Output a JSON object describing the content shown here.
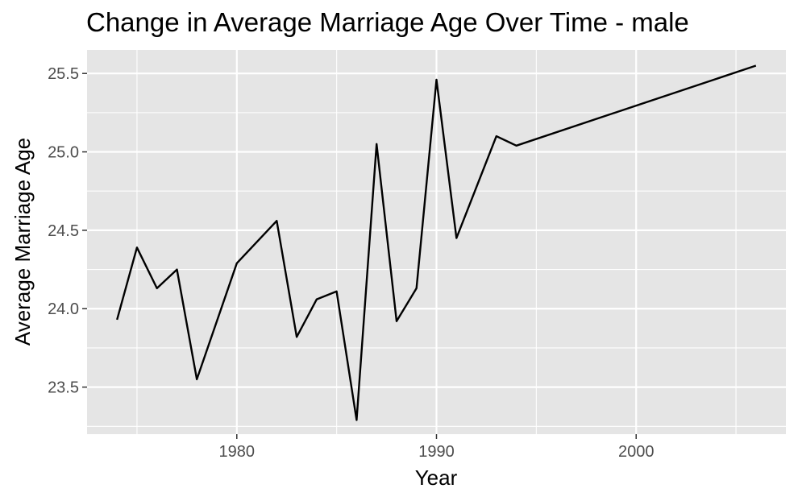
{
  "chart_data": {
    "type": "line",
    "title": "Change in Average Marriage Age Over Time - male",
    "xlabel": "Year",
    "ylabel": "Average Marriage Age",
    "xlim": [
      1972.5,
      2007.5
    ],
    "ylim": [
      23.2,
      25.65
    ],
    "x_ticks": [
      1980,
      1990,
      2000
    ],
    "x_tick_labels": [
      "1980",
      "1990",
      "2000"
    ],
    "y_ticks": [
      23.5,
      24.0,
      24.5,
      25.0,
      25.5
    ],
    "y_tick_labels": [
      "23.5",
      "24.0",
      "24.5",
      "25.0",
      "25.5"
    ],
    "grid": true,
    "legend": "none",
    "colors": {
      "panel_background": "#e5e5e5",
      "grid": "#ffffff",
      "line": "#000000",
      "tick_text": "#4d4d4d",
      "tick_mark": "#333333"
    },
    "series": [
      {
        "x": [
          1974,
          1975,
          1976,
          1977,
          1978,
          1980,
          1982,
          1983,
          1984,
          1985,
          1986,
          1987,
          1988,
          1989,
          1990,
          1991,
          1993,
          1994,
          2006
        ],
        "values": [
          23.93,
          24.39,
          24.13,
          24.25,
          23.55,
          24.29,
          24.56,
          23.82,
          24.06,
          24.11,
          23.29,
          25.05,
          23.92,
          24.13,
          25.46,
          24.45,
          25.1,
          25.04,
          25.55
        ]
      }
    ]
  }
}
